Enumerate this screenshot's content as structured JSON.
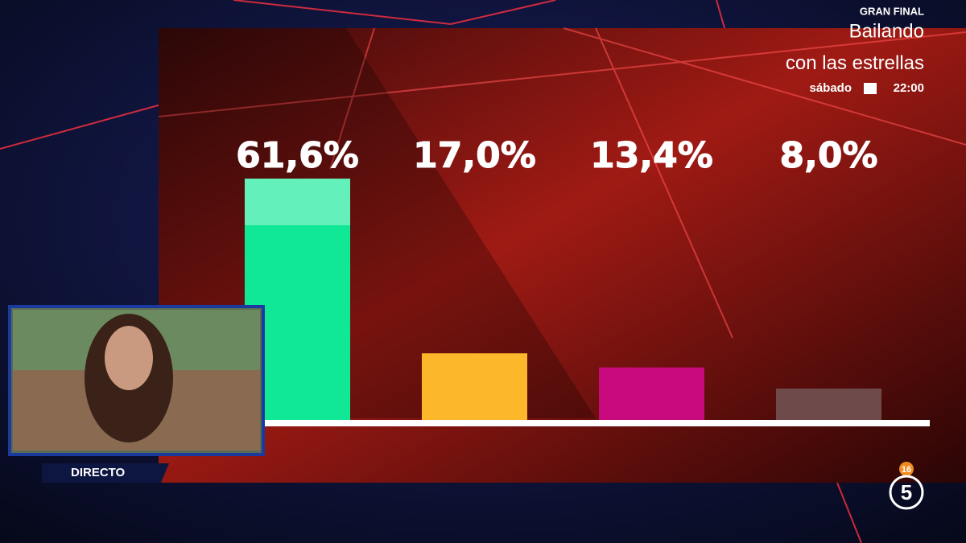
{
  "chart_data": {
    "type": "bar",
    "categories": [
      null,
      null,
      null,
      null
    ],
    "values": [
      61.6,
      17.0,
      13.4,
      8.0
    ],
    "value_labels": [
      "61,6%",
      "17,0%",
      "13,4%",
      "8,0%"
    ],
    "colors": [
      "#10e896",
      "#fdb72b",
      "#c80a7e",
      "#6e4a4a"
    ]
  },
  "promo": {
    "kicker": "GRAN FINAL",
    "title_line1": "Bailando",
    "title_line2": "con las estrellas",
    "day": "sábado",
    "time": "22:00"
  },
  "live_label": "DIRECTO",
  "channel": {
    "logo": "5",
    "rating": "16"
  }
}
